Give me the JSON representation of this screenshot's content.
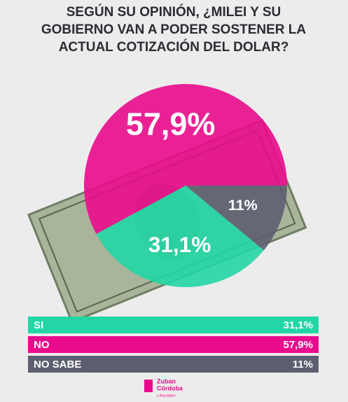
{
  "chart_data": {
    "type": "pie",
    "title": [
      "SEGÚN SU OPINIÓN, ¿MILEI Y SU",
      "GOBIERNO VAN A PODER SOSTENER LA",
      "ACTUAL COTIZACIÓN DEL DOLAR?"
    ],
    "categories": [
      "SI",
      "NO",
      "NO SABE"
    ],
    "values": [
      31.1,
      57.9,
      11
    ],
    "value_labels": [
      "31,1%",
      "57,9%",
      "11%"
    ],
    "colors": [
      "#22d6a5",
      "#ea0b8c",
      "#5d5f70"
    ]
  },
  "logo": {
    "lines": [
      "Zuban",
      "Córdoba"
    ],
    "tagline": "y Asociados"
  }
}
